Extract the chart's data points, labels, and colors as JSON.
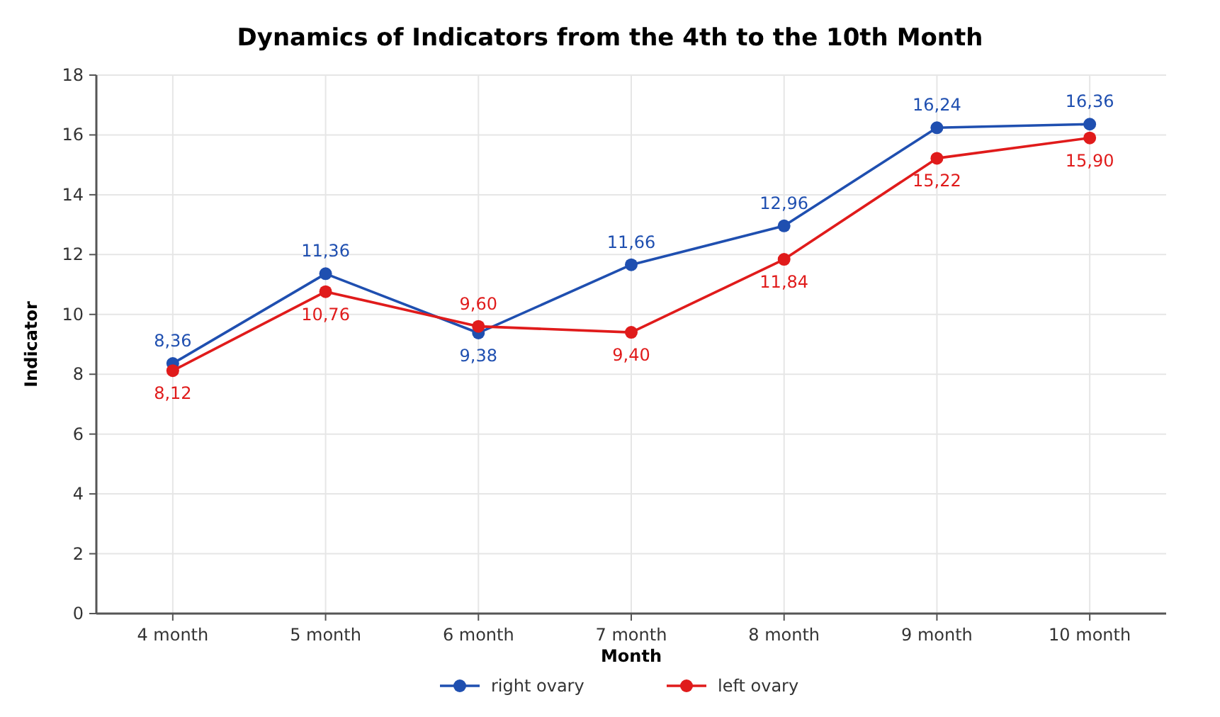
{
  "chart_data": {
    "type": "line",
    "title": "Dynamics of Indicators from the 4th to the 10th Month",
    "xlabel": "Month",
    "ylabel": "Indicator",
    "categories": [
      "4 month",
      "5 month",
      "6 month",
      "7 month",
      "8 month",
      "9 month",
      "10 month"
    ],
    "series": [
      {
        "name": "right ovary",
        "color": "#1f4fb0",
        "values": [
          8.36,
          11.36,
          9.38,
          11.66,
          12.96,
          16.24,
          16.36
        ],
        "value_labels": [
          "8,36",
          "11,36",
          "9,38",
          "11,66",
          "12,96",
          "16,24",
          "16,36"
        ]
      },
      {
        "name": "left ovary",
        "color": "#e01b1b",
        "values": [
          8.12,
          10.76,
          9.6,
          9.4,
          11.84,
          15.22,
          15.9
        ],
        "value_labels": [
          "8,12",
          "10,76",
          "9,60",
          "9,40",
          "11,84",
          "15,22",
          "15,90"
        ]
      }
    ],
    "ylim": [
      0,
      18
    ],
    "yticks": [
      0,
      2,
      4,
      6,
      8,
      10,
      12,
      14,
      16,
      18
    ],
    "grid": true,
    "legend": "bottom",
    "marker": "circle",
    "line_style": "solid"
  }
}
